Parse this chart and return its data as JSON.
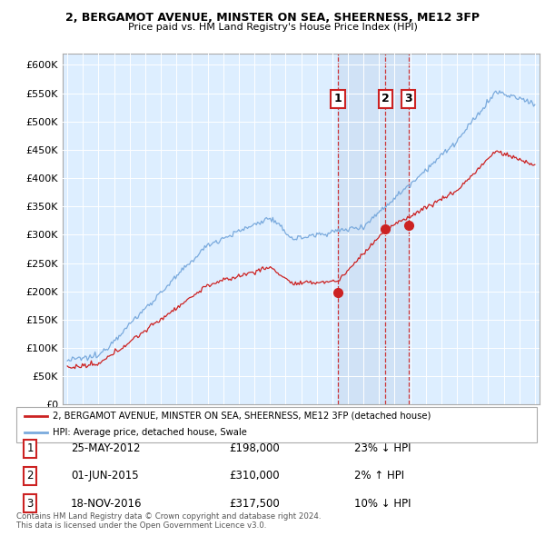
{
  "title1": "2, BERGAMOT AVENUE, MINSTER ON SEA, SHEERNESS, ME12 3FP",
  "title2": "Price paid vs. HM Land Registry's House Price Index (HPI)",
  "ylabel_ticks": [
    "£0",
    "£50K",
    "£100K",
    "£150K",
    "£200K",
    "£250K",
    "£300K",
    "£350K",
    "£400K",
    "£450K",
    "£500K",
    "£550K",
    "£600K"
  ],
  "ylim_max": 620000,
  "xlim_start": 1994.7,
  "xlim_end": 2025.3,
  "hpi_color": "#7aaadd",
  "price_color": "#cc2222",
  "bg_color": "#ddeeff",
  "shade_color": "#c8daf0",
  "transaction_dates": [
    2012.38,
    2015.42,
    2016.88
  ],
  "transaction_labels": [
    "1",
    "2",
    "3"
  ],
  "transaction_prices": [
    198000,
    310000,
    317500
  ],
  "legend_line1": "2, BERGAMOT AVENUE, MINSTER ON SEA, SHEERNESS, ME12 3FP (detached house)",
  "legend_line2": "HPI: Average price, detached house, Swale",
  "table_rows": [
    [
      "1",
      "25-MAY-2012",
      "£198,000",
      "23% ↓ HPI"
    ],
    [
      "2",
      "01-JUN-2015",
      "£310,000",
      "2% ↑ HPI"
    ],
    [
      "3",
      "18-NOV-2016",
      "£317,500",
      "10% ↓ HPI"
    ]
  ],
  "footnote1": "Contains HM Land Registry data © Crown copyright and database right 2024.",
  "footnote2": "This data is licensed under the Open Government Licence v3.0."
}
